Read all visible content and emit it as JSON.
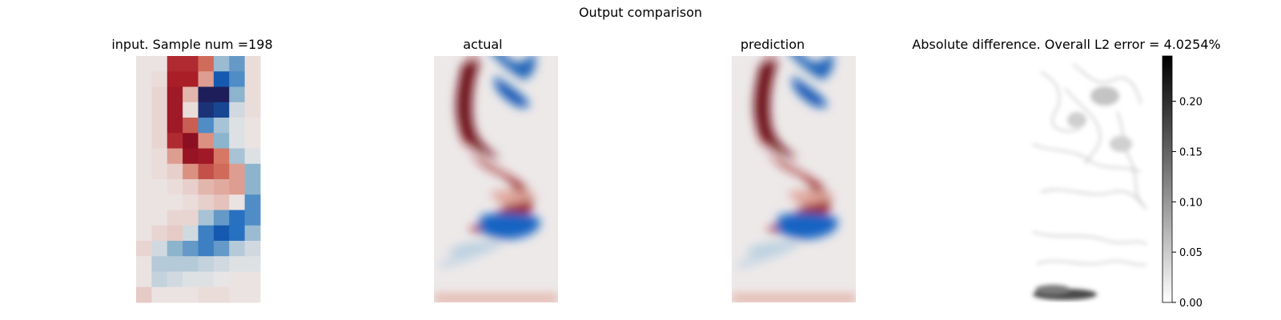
{
  "figure": {
    "title": "Output comparison",
    "panels": [
      {
        "title": "input. Sample num =198"
      },
      {
        "title": "actual"
      },
      {
        "title": "prediction"
      },
      {
        "title": "Absolute difference. Overall L2 error = 4.0254%"
      }
    ]
  },
  "chart_data": {
    "type": "heatmap",
    "title": "Output comparison",
    "input_grid_cols": 8,
    "input_grid_rows": 16,
    "input_colormap": "diverging red-white-blue (red positive, blue negative)",
    "input_values": [
      [
        0.02,
        0.02,
        0.75,
        0.75,
        0.5,
        -0.3,
        -0.45,
        0.05
      ],
      [
        0.02,
        0.05,
        0.8,
        0.8,
        0.3,
        -0.7,
        -0.5,
        0.05
      ],
      [
        0.02,
        0.08,
        0.85,
        0.2,
        -1.0,
        -1.0,
        -0.35,
        0.05
      ],
      [
        0.02,
        0.08,
        0.85,
        0.05,
        -0.9,
        -0.8,
        -0.1,
        0.05
      ],
      [
        0.02,
        0.08,
        0.85,
        0.55,
        -0.5,
        -0.25,
        -0.05,
        0.02
      ],
      [
        0.02,
        0.08,
        0.75,
        0.95,
        0.35,
        -0.35,
        -0.05,
        0.02
      ],
      [
        0.02,
        0.05,
        0.3,
        0.9,
        0.85,
        0.45,
        -0.25,
        -0.05
      ],
      [
        0.02,
        0.05,
        0.1,
        0.35,
        0.6,
        0.5,
        0.3,
        -0.35
      ],
      [
        0.02,
        0.02,
        0.05,
        0.1,
        0.2,
        0.25,
        0.3,
        -0.35
      ],
      [
        0.02,
        0.02,
        0.02,
        0.05,
        0.1,
        0.15,
        0.02,
        -0.5
      ],
      [
        0.02,
        0.02,
        0.08,
        0.08,
        -0.25,
        -0.45,
        -0.6,
        -0.5
      ],
      [
        0.02,
        0.08,
        0.12,
        -0.1,
        -0.55,
        -0.7,
        -0.6,
        -0.3
      ],
      [
        0.08,
        -0.1,
        -0.35,
        -0.45,
        -0.55,
        -0.45,
        -0.2,
        -0.1
      ],
      [
        0.02,
        -0.2,
        -0.2,
        -0.2,
        -0.15,
        -0.1,
        -0.05,
        -0.05
      ],
      [
        0.02,
        -0.15,
        -0.1,
        -0.05,
        -0.05,
        -0.02,
        0.02,
        0.02
      ],
      [
        0.12,
        0.02,
        0.02,
        0.02,
        0.05,
        0.05,
        0.02,
        0.02
      ]
    ],
    "field_colormap": "diverging red-white-blue",
    "difference_colormap": "gray (white = 0, black = max)",
    "colorbar": {
      "range": [
        0.0,
        0.245
      ],
      "ticks": [
        0.0,
        0.05,
        0.1,
        0.15,
        0.2
      ],
      "tick_labels": [
        "0.00",
        "0.05",
        "0.10",
        "0.15",
        "0.20"
      ]
    },
    "overall_l2_error_percent": 4.0254,
    "sample_num": 198
  }
}
